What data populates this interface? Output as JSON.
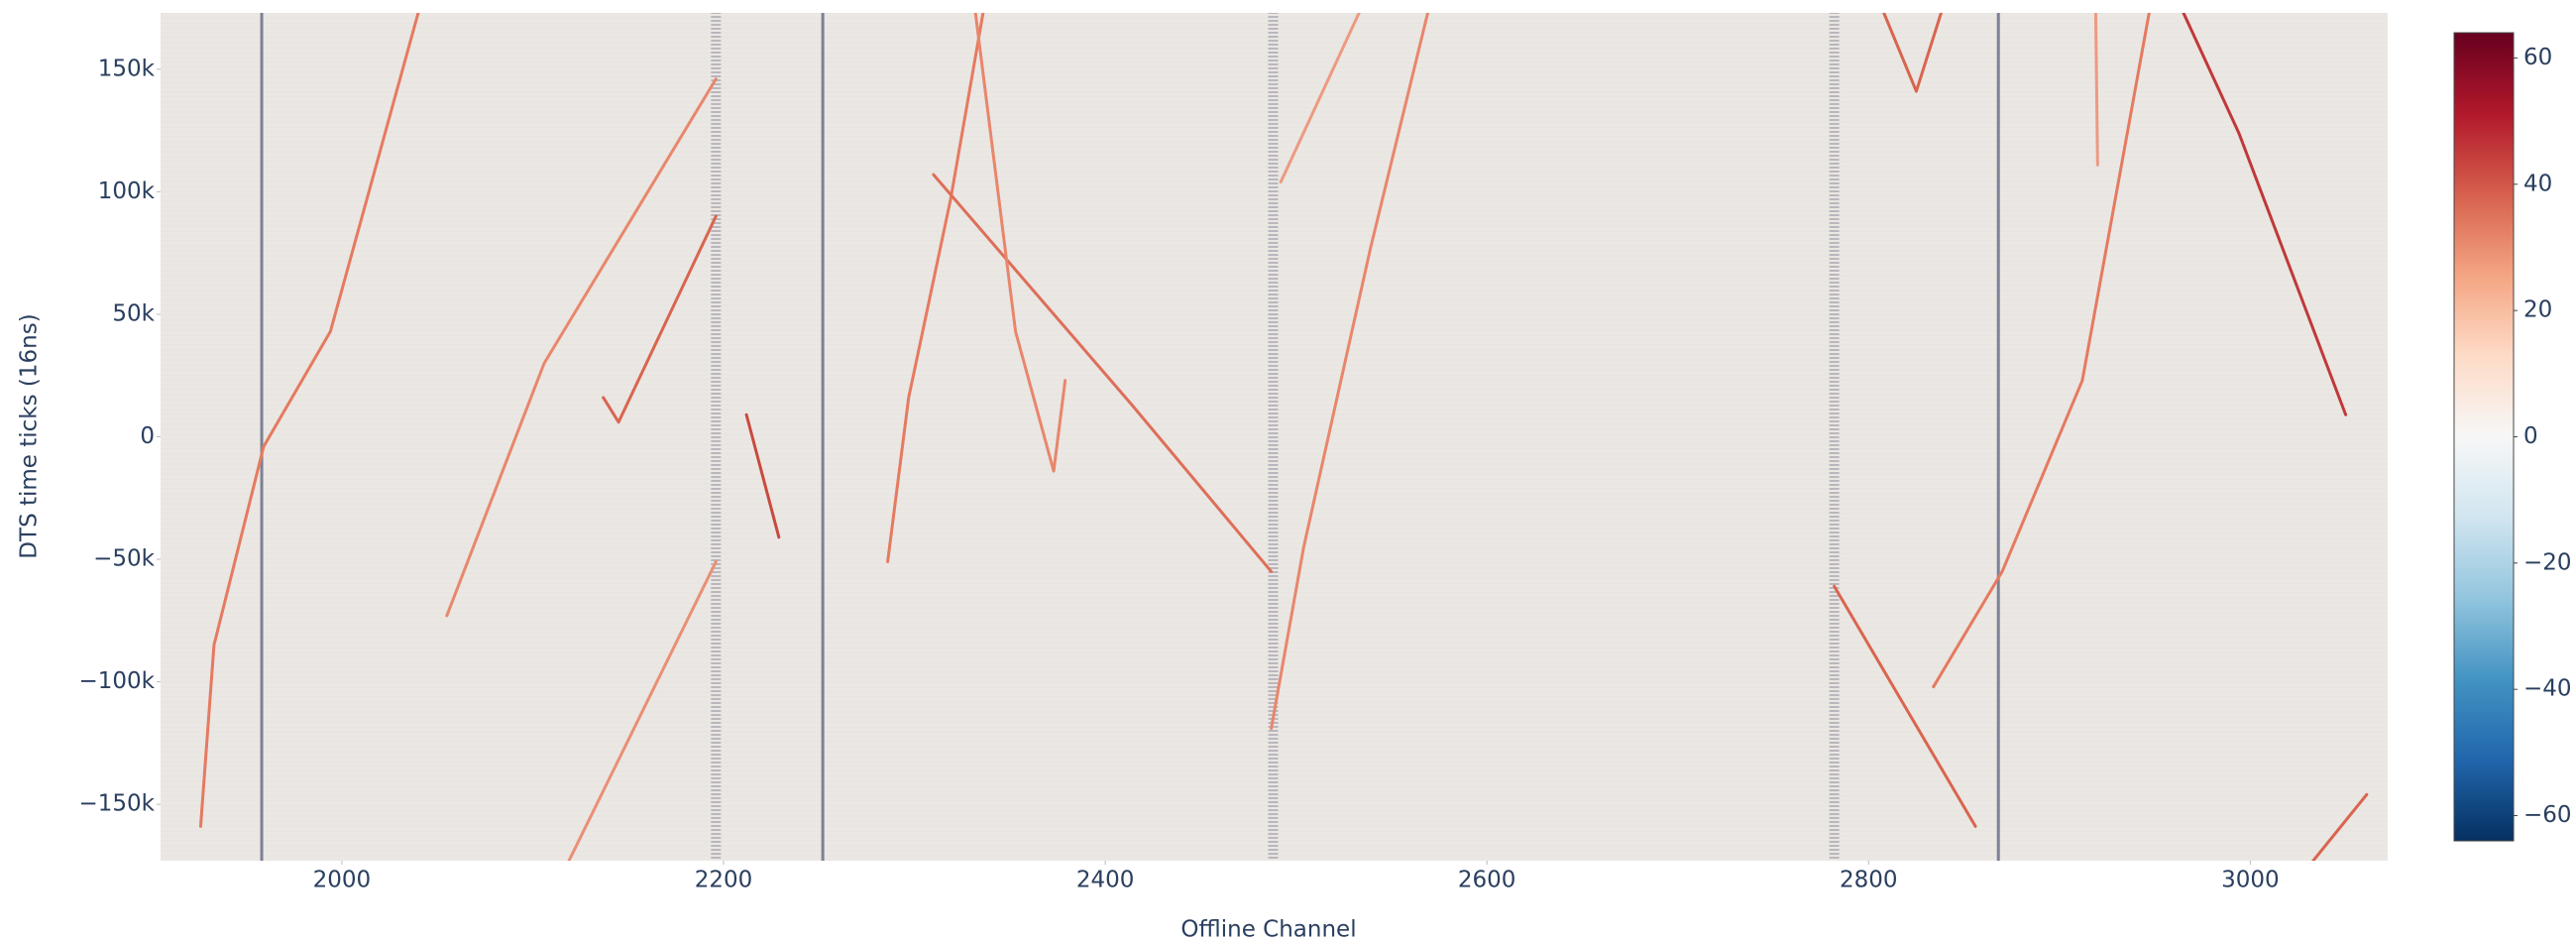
{
  "chart_data": {
    "type": "heatmap",
    "x_label": "Offline Channel",
    "y_label": "DTS time ticks (16ns)",
    "xlim": [
      1905,
      3072
    ],
    "ylim": [
      -173000,
      173000
    ],
    "xticks": [
      2000,
      2200,
      2400,
      2600,
      2800,
      3000
    ],
    "yticks": [
      {
        "value": -150000,
        "label": "−150k"
      },
      {
        "value": -100000,
        "label": "−100k"
      },
      {
        "value": -50000,
        "label": "−50k"
      },
      0,
      {
        "value": 50000,
        "label": "50k"
      },
      {
        "value": 100000,
        "label": "100k"
      },
      {
        "value": 150000,
        "label": "150k"
      }
    ],
    "background_color": "#ebe7e3",
    "colorscale": [
      "#053061",
      "#2166ac",
      "#4393c3",
      "#92c5de",
      "#d1e5f0",
      "#f7f7f7",
      "#fddbc7",
      "#f4a582",
      "#d6604d",
      "#b2182b",
      "#67001f"
    ],
    "zlim": [
      -64,
      64
    ],
    "zticks": [
      {
        "value": -60,
        "label": "−60"
      },
      {
        "value": -40,
        "label": "−40"
      },
      {
        "value": -20,
        "label": "−20"
      },
      0,
      20,
      40,
      60
    ],
    "dead_channels": {
      "x": [
        1958,
        2252,
        2868
      ],
      "color": "#7d8196"
    },
    "noisy_channels": {
      "x": [
        2196,
        2488,
        2782
      ],
      "color": "#9a98a6"
    },
    "tracks": [
      {
        "color": "#e57a60",
        "x": [
          1926,
          1933,
          1959,
          1994,
          2040
        ],
        "y": [
          -159000,
          -85000,
          -4000,
          43000,
          173000
        ]
      },
      {
        "color": "#e8876c",
        "x": [
          2055,
          2106,
          2158,
          2196
        ],
        "y": [
          -73000,
          30000,
          97000,
          146000
        ]
      },
      {
        "color": "#d9654f",
        "x": [
          2137,
          2145,
          2196
        ],
        "y": [
          16000,
          6000,
          90000
        ]
      },
      {
        "color": "#ea8f75",
        "x": [
          2119,
          2196
        ],
        "y": [
          -173000,
          -51000
        ]
      },
      {
        "color": "#c94a3e",
        "x": [
          2212,
          2229
        ],
        "y": [
          9000,
          -41000
        ]
      },
      {
        "color": "#e57a60",
        "x": [
          2286,
          2297,
          2319,
          2336
        ],
        "y": [
          -51000,
          16000,
          97000,
          173000
        ]
      },
      {
        "color": "#dd6f58",
        "x": [
          2310,
          2414,
          2487
        ],
        "y": [
          107000,
          13000,
          -55000
        ]
      },
      {
        "color": "#e8866c",
        "x": [
          2332,
          2353,
          2373,
          2379
        ],
        "y": [
          173000,
          43000,
          -14000,
          23000
        ]
      },
      {
        "color": "#e8866c",
        "x": [
          2487,
          2504,
          2539,
          2569
        ],
        "y": [
          -119000,
          -45000,
          77000,
          173000
        ]
      },
      {
        "color": "#ec9a82",
        "x": [
          2492,
          2533
        ],
        "y": [
          104000,
          173000
        ]
      },
      {
        "color": "#d9654f",
        "x": [
          2782,
          2856
        ],
        "y": [
          -61000,
          -159000
        ]
      },
      {
        "color": "#e57a60",
        "x": [
          2834,
          2870,
          2912,
          2947
        ],
        "y": [
          -102000,
          -55000,
          23000,
          173000
        ]
      },
      {
        "color": "#d9654f",
        "x": [
          2808,
          2825,
          2838
        ],
        "y": [
          173000,
          141000,
          173000
        ]
      },
      {
        "color": "#c0393a",
        "x": [
          2965,
          2994,
          3050
        ],
        "y": [
          173000,
          124000,
          9000
        ]
      },
      {
        "color": "#d9654f",
        "x": [
          3033,
          3061
        ],
        "y": [
          -173000,
          -146000
        ]
      },
      {
        "color": "#ec9a82",
        "x": [
          2919,
          2920
        ],
        "y": [
          173000,
          111000
        ]
      }
    ]
  }
}
